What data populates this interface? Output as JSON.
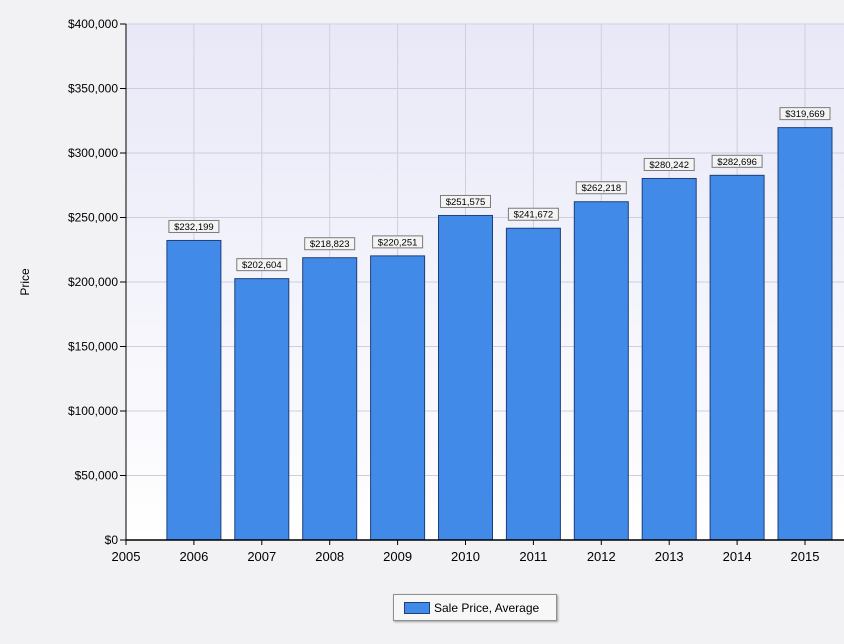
{
  "chart_data": {
    "type": "bar",
    "title": "",
    "xlabel": "",
    "ylabel": "Price",
    "categories": [
      "2006",
      "2007",
      "2008",
      "2009",
      "2010",
      "2011",
      "2012",
      "2013",
      "2014",
      "2015"
    ],
    "x_ticks": [
      "2005",
      "2006",
      "2007",
      "2008",
      "2009",
      "2010",
      "2011",
      "2012",
      "2013",
      "2014",
      "2015"
    ],
    "series": [
      {
        "name": "Sale Price, Average",
        "color": "#428ae8",
        "values": [
          232199,
          202604,
          218823,
          220251,
          251575,
          241672,
          262218,
          280242,
          282696,
          319669
        ],
        "labels": [
          "$232,199",
          "$202,604",
          "$218,823",
          "$220,251",
          "$251,575",
          "$241,672",
          "$262,218",
          "$280,242",
          "$282,696",
          "$319,669"
        ]
      }
    ],
    "ylim": [
      0,
      400000
    ],
    "y_ticks": [
      0,
      50000,
      100000,
      150000,
      200000,
      250000,
      300000,
      350000,
      400000
    ],
    "y_tick_labels": [
      "$0",
      "$50,000",
      "$100,000",
      "$150,000",
      "$200,000",
      "$250,000",
      "$300,000",
      "$350,000",
      "$400,000"
    ],
    "grid": true,
    "legend_position": "bottom-center"
  }
}
